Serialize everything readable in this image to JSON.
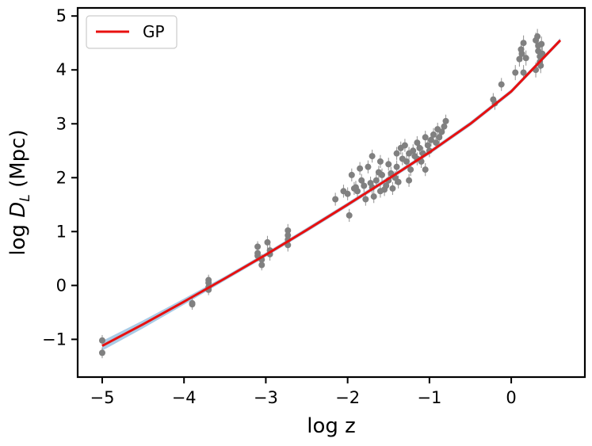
{
  "chart_data": {
    "type": "scatter",
    "xlabel": "log z",
    "ylabel_main": "log ",
    "ylabel_sym": "D",
    "ylabel_sub": "L",
    "ylabel_unit": " (Mpc)",
    "xlim": [
      -5.3,
      0.9
    ],
    "ylim": [
      -1.7,
      5.15
    ],
    "xticks": [
      -5,
      -4,
      -3,
      -2,
      -1,
      0
    ],
    "yticks": [
      -1,
      0,
      1,
      2,
      3,
      4,
      5
    ],
    "legend": {
      "position": "top-left",
      "entries": [
        {
          "label": "GP",
          "color": "#e8100f"
        }
      ]
    },
    "colors": {
      "points": "#808080",
      "fit": "#e8100f",
      "band": "#6fa8d6"
    },
    "series": [
      {
        "type": "line",
        "x": [
          -5.0,
          -4.5,
          -4.0,
          -3.5,
          -3.0,
          -2.5,
          -2.0,
          -1.5,
          -1.0,
          -0.5,
          0.0,
          0.6
        ],
        "y": [
          -1.12,
          -0.72,
          -0.3,
          0.13,
          0.57,
          1.03,
          1.5,
          1.98,
          2.47,
          3.0,
          3.6,
          4.55
        ]
      },
      {
        "type": "scatter",
        "points": [
          [
            -5.0,
            -1.02
          ],
          [
            -5.0,
            -1.25
          ],
          [
            -3.9,
            -0.33
          ],
          [
            -3.9,
            -0.35
          ],
          [
            -3.7,
            0.1
          ],
          [
            -3.7,
            -0.03
          ],
          [
            -3.7,
            -0.08
          ],
          [
            -3.7,
            0.05
          ],
          [
            -3.1,
            0.72
          ],
          [
            -3.1,
            0.6
          ],
          [
            -3.1,
            0.55
          ],
          [
            -3.05,
            0.48
          ],
          [
            -3.05,
            0.38
          ],
          [
            -2.98,
            0.8
          ],
          [
            -2.95,
            0.65
          ],
          [
            -2.95,
            0.58
          ],
          [
            -2.73,
            1.02
          ],
          [
            -2.73,
            0.93
          ],
          [
            -2.73,
            0.85
          ],
          [
            -2.73,
            0.75
          ],
          [
            -2.15,
            1.6
          ],
          [
            -2.05,
            1.75
          ],
          [
            -2.0,
            1.7
          ],
          [
            -1.98,
            1.3
          ],
          [
            -1.95,
            2.05
          ],
          [
            -1.92,
            1.8
          ],
          [
            -1.9,
            1.82
          ],
          [
            -1.88,
            1.75
          ],
          [
            -1.85,
            2.17
          ],
          [
            -1.83,
            1.95
          ],
          [
            -1.8,
            1.85
          ],
          [
            -1.78,
            1.6
          ],
          [
            -1.75,
            2.2
          ],
          [
            -1.72,
            1.9
          ],
          [
            -1.7,
            1.82
          ],
          [
            -1.68,
            1.65
          ],
          [
            -1.65,
            1.95
          ],
          [
            -1.62,
            2.1
          ],
          [
            -1.6,
            2.3
          ],
          [
            -1.58,
            2.05
          ],
          [
            -1.55,
            1.78
          ],
          [
            -1.53,
            1.85
          ],
          [
            -1.5,
            2.25
          ],
          [
            -1.5,
            1.95
          ],
          [
            -1.47,
            2.08
          ],
          [
            -1.45,
            1.8
          ],
          [
            -1.42,
            2.0
          ],
          [
            -1.4,
            2.2
          ],
          [
            -1.38,
            1.92
          ],
          [
            -1.35,
            2.55
          ],
          [
            -1.33,
            2.35
          ],
          [
            -1.3,
            2.6
          ],
          [
            -1.28,
            2.3
          ],
          [
            -1.25,
            2.45
          ],
          [
            -1.23,
            2.15
          ],
          [
            -1.2,
            2.5
          ],
          [
            -1.18,
            2.4
          ],
          [
            -1.15,
            2.65
          ],
          [
            -1.12,
            2.55
          ],
          [
            -1.1,
            2.3
          ],
          [
            -1.08,
            2.45
          ],
          [
            -1.05,
            2.75
          ],
          [
            -1.02,
            2.6
          ],
          [
            -1.0,
            2.5
          ],
          [
            -0.98,
            2.7
          ],
          [
            -0.95,
            2.8
          ],
          [
            -0.92,
            2.65
          ],
          [
            -0.9,
            2.9
          ],
          [
            -0.88,
            2.75
          ],
          [
            -0.85,
            2.85
          ],
          [
            -0.82,
            2.95
          ],
          [
            -0.8,
            3.05
          ],
          [
            -1.05,
            2.15
          ],
          [
            -1.25,
            1.95
          ],
          [
            -1.6,
            1.75
          ],
          [
            -1.7,
            2.4
          ],
          [
            -1.4,
            2.45
          ],
          [
            -1.15,
            2.35
          ],
          [
            -0.22,
            3.45
          ],
          [
            -0.2,
            3.38
          ],
          [
            -0.12,
            3.73
          ],
          [
            0.05,
            3.95
          ],
          [
            0.1,
            4.2
          ],
          [
            0.12,
            4.38
          ],
          [
            0.13,
            4.3
          ],
          [
            0.15,
            3.95
          ],
          [
            0.15,
            4.5
          ],
          [
            0.18,
            4.22
          ],
          [
            0.3,
            4.0
          ],
          [
            0.3,
            4.55
          ],
          [
            0.32,
            4.62
          ],
          [
            0.33,
            4.45
          ],
          [
            0.33,
            4.35
          ],
          [
            0.35,
            4.25
          ],
          [
            0.35,
            4.15
          ],
          [
            0.36,
            4.08
          ],
          [
            0.37,
            4.48
          ],
          [
            0.38,
            4.3
          ]
        ]
      }
    ]
  }
}
